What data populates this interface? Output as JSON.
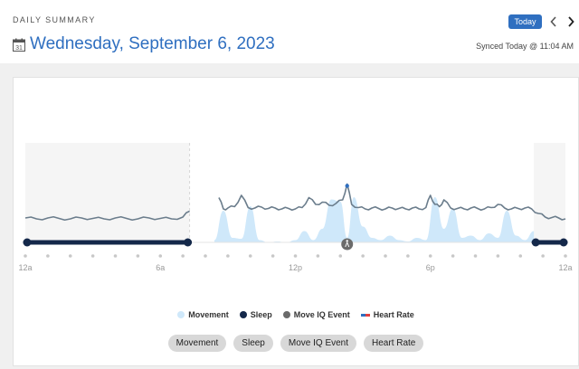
{
  "header": {
    "section_label": "DAILY SUMMARY",
    "calendar_day": "31",
    "date_title": "Wednesday, September 6, 2023",
    "today_label": "Today",
    "synced_text": "Synced Today @ 11:04 AM"
  },
  "colors": {
    "accent": "#2f6fc0",
    "movement": "#cfe8fa",
    "sleep": "#14284a",
    "event": "#6b6b6b",
    "heart_rate_line": "#6b7d8c",
    "heart_rate_high": "#2f6fc0"
  },
  "chart_data": {
    "type": "area",
    "x_tick_labels": [
      "12a",
      "6a",
      "12p",
      "6p",
      "12a"
    ],
    "x_range_hours": [
      0,
      24
    ],
    "legend": [
      "Movement",
      "Sleep",
      "Move IQ Event",
      "Heart Rate"
    ],
    "sleep_periods_hours": [
      [
        0,
        7.3
      ],
      [
        22.6,
        24
      ]
    ],
    "move_iq_event_hour": 14.3,
    "heart_rate": {
      "hours": [
        0,
        0.5,
        1,
        1.5,
        2,
        2.5,
        3,
        3.5,
        4,
        4.5,
        5,
        5.5,
        6,
        6.5,
        7,
        7.3,
        8.6,
        8.8,
        9,
        9.3,
        9.6,
        9.9,
        10.2,
        10.5,
        10.8,
        11.1,
        11.4,
        11.7,
        12,
        12.3,
        12.6,
        12.9,
        13.2,
        13.5,
        13.8,
        14.1,
        14.3,
        14.5,
        14.8,
        15.1,
        15.4,
        15.7,
        16,
        16.3,
        16.6,
        16.9,
        17.2,
        17.5,
        17.8,
        18,
        18.2,
        18.4,
        18.6,
        18.9,
        19.2,
        19.5,
        19.8,
        20.1,
        20.4,
        20.7,
        21,
        21.3,
        21.6,
        21.9,
        22.2,
        22.5,
        22.8,
        23.1,
        23.4,
        23.7,
        24
      ],
      "relative_level": [
        0.1,
        0.08,
        0.1,
        0.09,
        0.08,
        0.1,
        0.09,
        0.08,
        0.1,
        0.09,
        0.08,
        0.1,
        0.09,
        0.08,
        0.12,
        0.25,
        0.55,
        0.3,
        0.32,
        0.35,
        0.6,
        0.33,
        0.32,
        0.34,
        0.31,
        0.32,
        0.3,
        0.31,
        0.3,
        0.33,
        0.55,
        0.4,
        0.45,
        0.38,
        0.42,
        0.5,
        0.85,
        0.4,
        0.33,
        0.3,
        0.32,
        0.31,
        0.3,
        0.32,
        0.31,
        0.3,
        0.32,
        0.3,
        0.33,
        0.6,
        0.4,
        0.35,
        0.5,
        0.32,
        0.31,
        0.3,
        0.32,
        0.31,
        0.3,
        0.33,
        0.4,
        0.32,
        0.3,
        0.31,
        0.32,
        0.3,
        0.2,
        0.12,
        0.11,
        0.1,
        0.08
      ]
    },
    "movement": {
      "hours": [
        8.4,
        8.8,
        9.2,
        9.6,
        10,
        10.4,
        10.8,
        11.2,
        11.6,
        12,
        12.4,
        12.8,
        13.2,
        13.6,
        14,
        14.3,
        14.6,
        15,
        15.4,
        15.8,
        16.2,
        16.6,
        17,
        17.4,
        17.8,
        18.2,
        18.6,
        19,
        19.4,
        19.8,
        20.2,
        20.6,
        21,
        21.4,
        21.8,
        22.2,
        22.6
      ],
      "relative_level": [
        0.05,
        0.7,
        0.1,
        0.08,
        0.8,
        0.05,
        0,
        0.02,
        0,
        0.05,
        0.25,
        0.05,
        0.3,
        0.95,
        0.9,
        0.1,
        1,
        0.35,
        0.1,
        0.05,
        0.15,
        0.05,
        0.02,
        0.1,
        0.05,
        1,
        0.3,
        0.75,
        0.1,
        0.15,
        0.05,
        0.2,
        0.1,
        0.7,
        0.15,
        0.05,
        0.25
      ]
    }
  },
  "buttons": [
    "Movement",
    "Sleep",
    "Move IQ Event",
    "Heart Rate"
  ]
}
